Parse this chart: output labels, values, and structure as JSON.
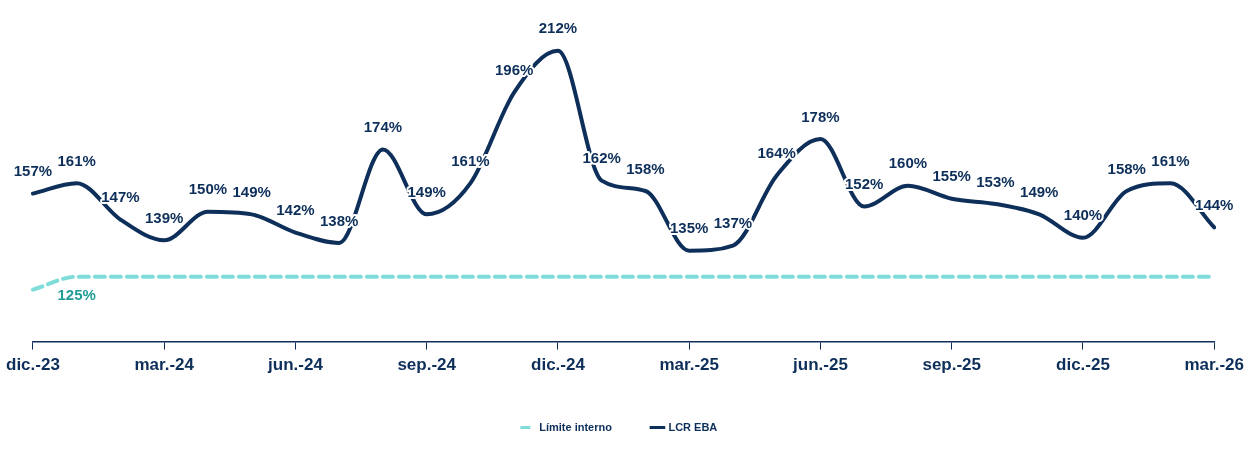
{
  "chart_data": {
    "type": "line",
    "categories": [
      "dic.-23",
      null,
      null,
      "mar.-24",
      null,
      null,
      "jun.-24",
      null,
      null,
      "sep.-24",
      null,
      null,
      "dic.-24",
      null,
      null,
      "mar.-25",
      null,
      null,
      "jun.-25",
      null,
      null,
      "sep.-25",
      null,
      null,
      "dic.-25",
      null,
      null,
      "mar.-26"
    ],
    "series": [
      {
        "name": "Límite interno",
        "color": "#7fdcd9",
        "line_style": "dashed",
        "values": [
          120,
          125,
          125,
          125,
          125,
          125,
          125,
          125,
          125,
          125,
          125,
          125,
          125,
          125,
          125,
          125,
          125,
          125,
          125,
          125,
          125,
          125,
          125,
          125,
          125,
          125,
          125,
          125
        ],
        "value_labels": [
          null,
          "125%",
          null,
          null,
          null,
          null,
          null,
          null,
          null,
          null,
          null,
          null,
          null,
          null,
          null,
          null,
          null,
          null,
          null,
          null,
          null,
          null,
          null,
          null,
          null,
          null,
          null,
          null
        ]
      },
      {
        "name": "LCR EBA",
        "color": "#0d2f5a",
        "line_style": "solid",
        "values": [
          157,
          161,
          147,
          139,
          150,
          149,
          142,
          138,
          174,
          149,
          161,
          196,
          212,
          162,
          158,
          135,
          137,
          164,
          178,
          152,
          160,
          155,
          153,
          149,
          140,
          158,
          161,
          144
        ],
        "value_labels": [
          "157%",
          "161%",
          "147%",
          "139%",
          "150%",
          "149%",
          "142%",
          "138%",
          "174%",
          "149%",
          "161%",
          "196%",
          "212%",
          "162%",
          "158%",
          "135%",
          "137%",
          "164%",
          "178%",
          "152%",
          "160%",
          "155%",
          "153%",
          "149%",
          "140%",
          "158%",
          "161%",
          "144%"
        ]
      }
    ],
    "legend": "bottom",
    "marker": "none"
  }
}
